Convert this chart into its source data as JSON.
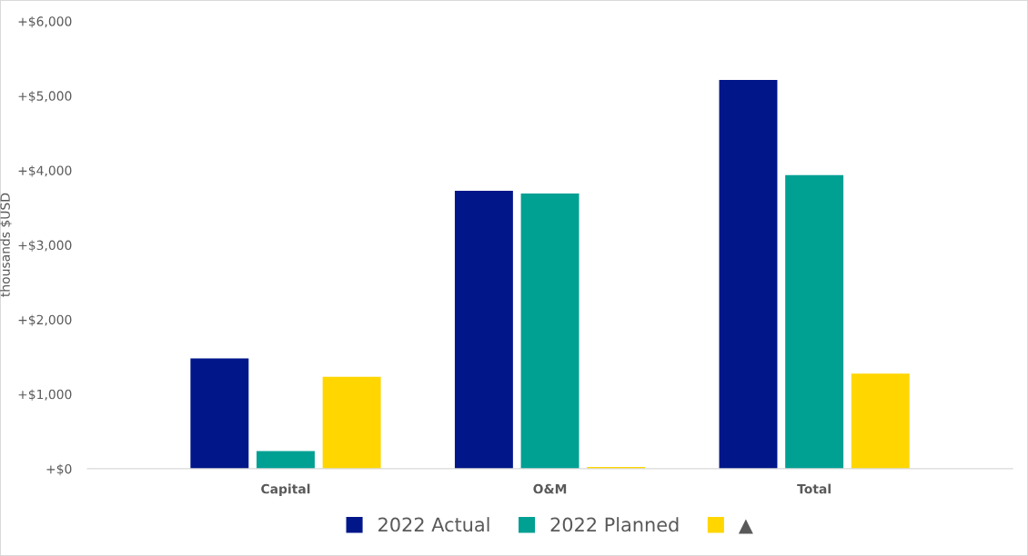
{
  "chart_data": {
    "type": "bar",
    "ylabel": "thousands $USD",
    "categories": [
      "Capital",
      "O&M",
      "Total"
    ],
    "series": [
      {
        "name": "2022 Actual",
        "color": "#001689",
        "values": [
          1480,
          3726,
          5211
        ]
      },
      {
        "name": "2022 Planned",
        "color": "#00a093",
        "values": [
          235,
          3688,
          3937
        ]
      },
      {
        "name": "▲",
        "color": "#ffd600",
        "values": [
          1231,
          24,
          1274
        ]
      }
    ],
    "ylim": [
      0,
      6000
    ],
    "yticks": [
      {
        "value": 0,
        "label": "+$0"
      },
      {
        "value": 1000,
        "label": "+$1,000"
      },
      {
        "value": 2000,
        "label": "+$2,000"
      },
      {
        "value": 3000,
        "label": "+$3,000"
      },
      {
        "value": 4000,
        "label": "+$4,000"
      },
      {
        "value": 5000,
        "label": "+$5,000"
      },
      {
        "value": 6000,
        "label": "+$6,000"
      }
    ],
    "grid": false,
    "legend": "bottom"
  }
}
